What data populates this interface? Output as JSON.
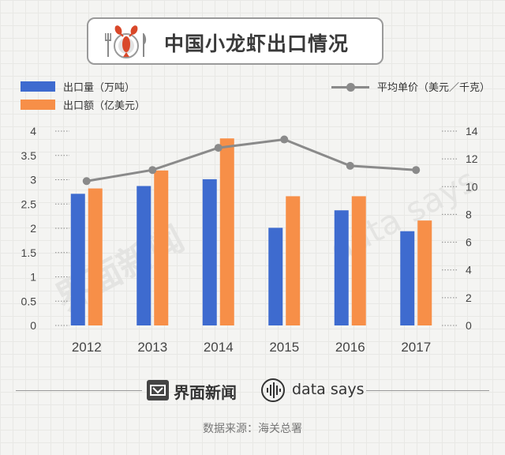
{
  "title": "中国小龙虾出口情况",
  "legend": {
    "volume": "出口量（万吨）",
    "value": "出口额（亿美元）",
    "price": "平均单价（美元／千克）"
  },
  "colors": {
    "volume": "#3e6bcf",
    "value": "#f78f48",
    "price": "#8a8a8a",
    "icon_red": "#d9482a"
  },
  "chart_data": {
    "type": "bar",
    "categories": [
      "2012",
      "2013",
      "2014",
      "2015",
      "2016",
      "2017"
    ],
    "series": [
      {
        "name": "出口量（万吨）",
        "axis": "left",
        "type": "bar",
        "values": [
          2.71,
          2.87,
          3.01,
          2.01,
          2.37,
          1.94
        ]
      },
      {
        "name": "出口额（亿美元）",
        "axis": "left",
        "type": "bar",
        "values": [
          2.82,
          3.19,
          3.85,
          2.66,
          2.66,
          2.16
        ]
      },
      {
        "name": "平均单价（美元／千克）",
        "axis": "right",
        "type": "line",
        "values": [
          10.4,
          11.2,
          12.8,
          13.4,
          11.5,
          11.2
        ]
      }
    ],
    "y_left": {
      "min": 0,
      "max": 4,
      "ticks": [
        "0",
        "0.5",
        "1",
        "1.5",
        "2",
        "2.5",
        "3",
        "3.5",
        "4"
      ]
    },
    "y_right": {
      "min": 0,
      "max": 14,
      "ticks": [
        "0",
        "2",
        "4",
        "6",
        "8",
        "10",
        "12",
        "14"
      ]
    },
    "grid": false,
    "legend_position": "top"
  },
  "footer": {
    "brand": "界面新闻",
    "datasays": "data says",
    "source": "数据来源：海关总署"
  },
  "watermarks": {
    "left": "界面新闻",
    "right": "data says"
  }
}
